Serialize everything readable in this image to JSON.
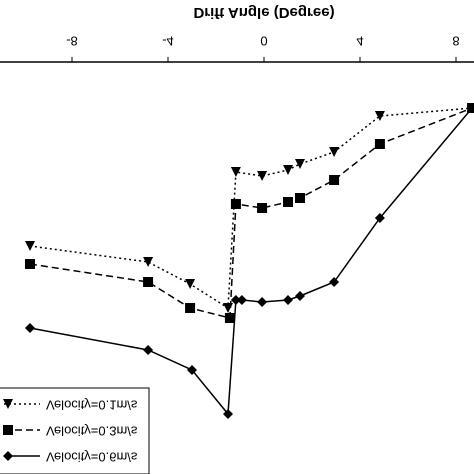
{
  "chart_data": {
    "type": "line",
    "xlabel": "Drift Angle (Degree)",
    "xlim": [
      -11,
      8.75
    ],
    "xticks": [
      -8,
      -4,
      0,
      4,
      8
    ],
    "ylim": [
      0,
      41.2
    ],
    "legend": "bottom-left",
    "series": [
      {
        "name": "Velocity=0.1m/s",
        "color": "#000",
        "marker": "triangle",
        "dash": "dotted",
        "x": [
          -9.75,
          -4.83,
          -3.08,
          -1.5,
          -1.17,
          -0.08,
          1.0,
          1.5,
          2.92,
          4.83,
          8.67
        ],
        "values": [
          22.8,
          21.2,
          19.0,
          16.6,
          30.2,
          29.8,
          30.4,
          31.0,
          32.2,
          35.8,
          36.6
        ]
      },
      {
        "name": "Velocity=0.3m/s",
        "color": "#000",
        "marker": "square",
        "dash": "dashed",
        "x": [
          -9.75,
          -4.83,
          -3.08,
          -1.42,
          -1.17,
          -0.08,
          1.0,
          1.5,
          2.92,
          4.83,
          8.67
        ],
        "values": [
          21.0,
          19.2,
          16.6,
          15.6,
          27.0,
          26.6,
          27.2,
          27.6,
          29.4,
          33.0,
          36.6
        ]
      },
      {
        "name": "Velocity=0.6m/s",
        "color": "#000",
        "marker": "diamond",
        "dash": "solid",
        "x": [
          -9.75,
          -4.83,
          -3.0,
          -1.5,
          -1.17,
          -0.92,
          -0.08,
          1.0,
          1.5,
          2.92,
          4.83,
          8.67
        ],
        "values": [
          14.6,
          12.4,
          10.4,
          6.0,
          17.4,
          17.4,
          17.2,
          17.4,
          17.8,
          19.2,
          25.6,
          36.6
        ]
      }
    ]
  }
}
